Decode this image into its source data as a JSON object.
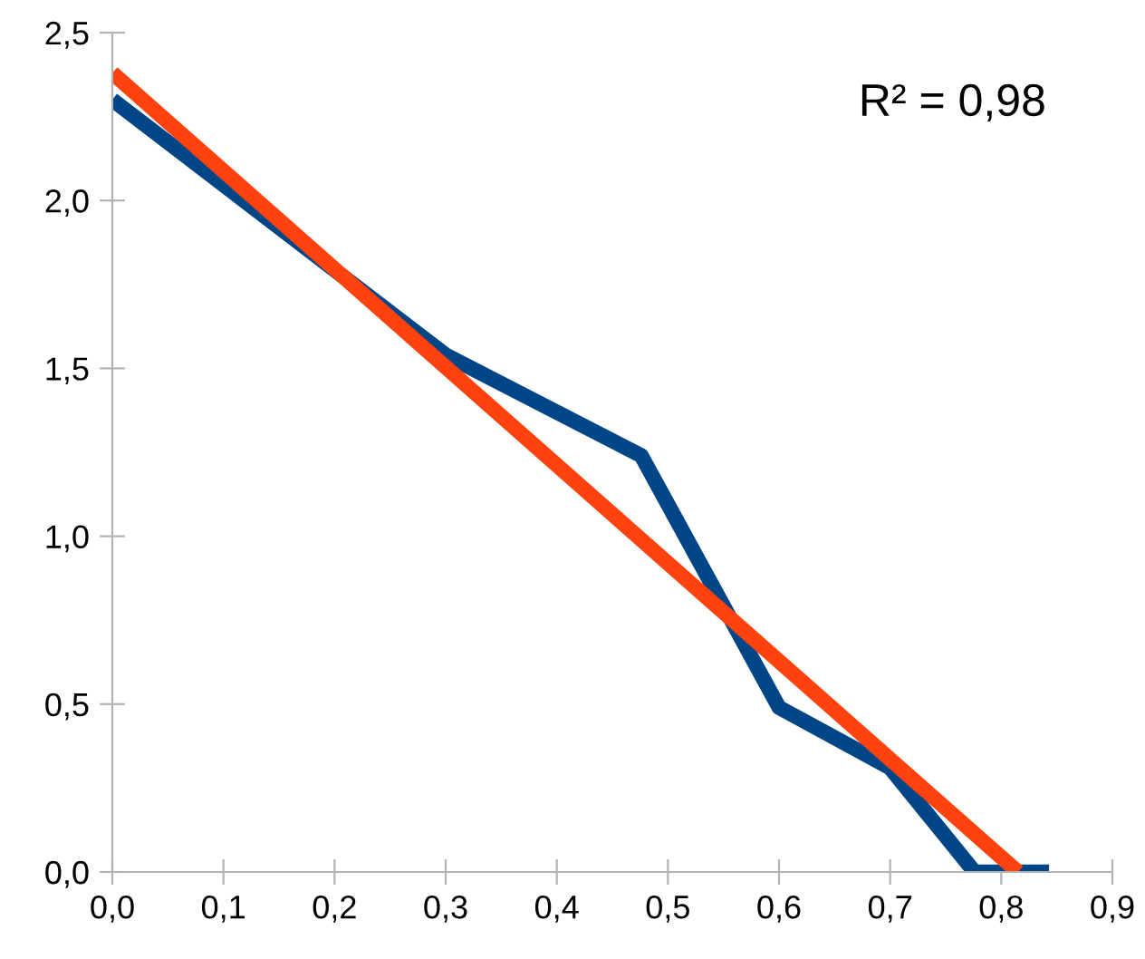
{
  "chart_data": {
    "type": "line",
    "x": [
      0.0,
      0.3,
      0.476,
      0.6,
      0.7,
      0.776,
      0.843
    ],
    "series": [
      {
        "color": "#004586",
        "values": [
          2.3,
          1.54,
          1.24,
          0.49,
          0.31,
          0.0,
          0.0
        ]
      },
      {
        "type": "line",
        "color": "#ff420e",
        "x": [
          0.0,
          0.815
        ],
        "values": [
          2.38,
          0.0
        ]
      }
    ],
    "xlim": [
      0.0,
      0.9
    ],
    "ylim": [
      0.0,
      2.5
    ],
    "xticks": [
      {
        "value": 0.0,
        "label": "0,0"
      },
      {
        "value": 0.1,
        "label": "0,1"
      },
      {
        "value": 0.2,
        "label": "0,2"
      },
      {
        "value": 0.3,
        "label": "0,3"
      },
      {
        "value": 0.4,
        "label": "0,4"
      },
      {
        "value": 0.5,
        "label": "0,5"
      },
      {
        "value": 0.6,
        "label": "0,6"
      },
      {
        "value": 0.7,
        "label": "0,7"
      },
      {
        "value": 0.8,
        "label": "0,8"
      },
      {
        "value": 0.9,
        "label": "0,9"
      }
    ],
    "yticks": [
      {
        "value": 0.0,
        "label": "0,0"
      },
      {
        "value": 0.5,
        "label": "0,5"
      },
      {
        "value": 1.0,
        "label": "1,0"
      },
      {
        "value": 1.5,
        "label": "1,5"
      },
      {
        "value": 2.0,
        "label": "2,0"
      },
      {
        "value": 2.5,
        "label": "2,5"
      }
    ],
    "annotations": [
      "R² = 0,98"
    ],
    "grid": false,
    "marker": "none",
    "line_style": "solid"
  }
}
